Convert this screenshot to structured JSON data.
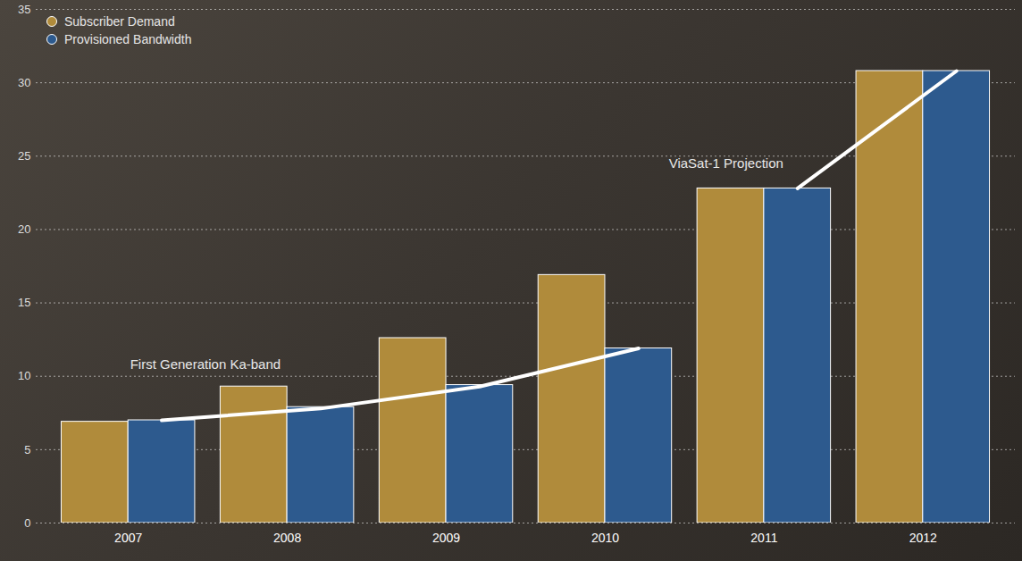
{
  "chart_data": {
    "type": "bar",
    "categories": [
      "2007",
      "2008",
      "2009",
      "2010",
      "2011",
      "2012"
    ],
    "series": [
      {
        "name": "Subscriber Demand",
        "color": "#b08b3b",
        "values": [
          6.9,
          9.3,
          12.6,
          16.9,
          22.8,
          30.8
        ]
      },
      {
        "name": "Provisioned Bandwidth",
        "color": "#2d5a8e",
        "values": [
          7.0,
          7.9,
          9.4,
          11.9,
          22.8,
          30.8
        ]
      }
    ],
    "ylim": [
      0,
      35
    ],
    "yticks": [
      0,
      5,
      10,
      15,
      20,
      25,
      30,
      35
    ],
    "grid": true,
    "legend": "top-left",
    "lines": [
      {
        "label": "First Generation Ka-band",
        "categories": [
          "2007",
          "2008",
          "2009",
          "2010"
        ],
        "values": [
          7.0,
          7.8,
          9.3,
          11.9
        ]
      },
      {
        "label": "ViaSat-1 Projection",
        "categories": [
          "2011",
          "2012"
        ],
        "values": [
          22.8,
          30.8
        ]
      }
    ]
  }
}
